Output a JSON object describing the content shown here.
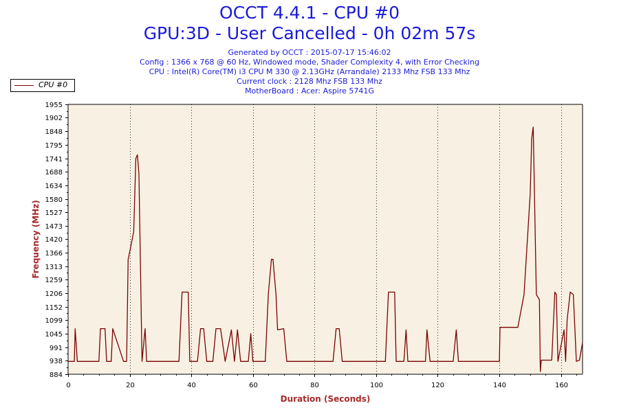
{
  "header": {
    "title_line1": "OCCT 4.4.1 - CPU #0",
    "title_line2": "GPU:3D - User Cancelled - 0h 02m 57s",
    "info_lines": [
      "Generated by OCCT : 2015-07-17 15:46:02",
      "Config : 1366 x 768 @ 60 Hz, Windowed mode, Shader Complexity 4, with Error Checking",
      "CPU : Intel(R) Core(TM) i3 CPU M 330 @ 2.13GHz (Arrandale) 2133 Mhz FSB 133 Mhz",
      "Current clock : 2128 Mhz FSB 133 Mhz",
      "MotherBoard : Acer: Aspire 5741G"
    ]
  },
  "legend": {
    "label": "CPU #0",
    "placement": "top-left"
  },
  "colors": {
    "line": "#7a0000",
    "plot_bg": "#f8f1e3",
    "axis_label": "#a52a2a",
    "title": "#1a1ad8"
  },
  "chart_data": {
    "type": "line",
    "xlabel": "Duration (Seconds)",
    "ylabel": "Frequency (MHz)",
    "xlim": [
      0,
      167
    ],
    "ylim": [
      884,
      1955
    ],
    "x_ticks": [
      0,
      20,
      40,
      60,
      80,
      100,
      120,
      140,
      160
    ],
    "y_ticks": [
      884,
      938,
      991,
      1045,
      1099,
      1152,
      1206,
      1259,
      1313,
      1366,
      1420,
      1473,
      1527,
      1580,
      1634,
      1688,
      1741,
      1795,
      1848,
      1902,
      1955
    ],
    "grid": {
      "x": true,
      "y": false
    },
    "series": [
      {
        "name": "CPU #0",
        "points": [
          [
            0,
            935
          ],
          [
            2,
            935
          ],
          [
            2.3,
            1065
          ],
          [
            3,
            935
          ],
          [
            10,
            935
          ],
          [
            10.5,
            1065
          ],
          [
            12,
            1065
          ],
          [
            12.5,
            935
          ],
          [
            14,
            935
          ],
          [
            14.5,
            1065
          ],
          [
            18,
            935
          ],
          [
            19,
            935
          ],
          [
            19.5,
            1340
          ],
          [
            20.5,
            1400
          ],
          [
            21.3,
            1450
          ],
          [
            22,
            1740
          ],
          [
            22.5,
            1755
          ],
          [
            23,
            1680
          ],
          [
            24,
            935
          ],
          [
            25,
            1065
          ],
          [
            25.5,
            935
          ],
          [
            36,
            935
          ],
          [
            37,
            1210
          ],
          [
            39,
            1210
          ],
          [
            39.5,
            935
          ],
          [
            42,
            935
          ],
          [
            43,
            1065
          ],
          [
            44,
            1065
          ],
          [
            45,
            935
          ],
          [
            47,
            935
          ],
          [
            48,
            1065
          ],
          [
            49.5,
            1065
          ],
          [
            51,
            935
          ],
          [
            53,
            1060
          ],
          [
            54,
            935
          ],
          [
            55,
            1060
          ],
          [
            56,
            935
          ],
          [
            58.5,
            935
          ],
          [
            59.3,
            1045
          ],
          [
            60,
            935
          ],
          [
            64,
            935
          ],
          [
            65,
            1200
          ],
          [
            66,
            1340
          ],
          [
            66.5,
            1340
          ],
          [
            67.5,
            1200
          ],
          [
            68,
            1060
          ],
          [
            70,
            1065
          ],
          [
            71,
            935
          ],
          [
            86,
            935
          ],
          [
            87,
            1065
          ],
          [
            88,
            1065
          ],
          [
            89,
            935
          ],
          [
            103,
            935
          ],
          [
            104,
            1210
          ],
          [
            106,
            1210
          ],
          [
            106.5,
            935
          ],
          [
            109,
            935
          ],
          [
            109.7,
            1060
          ],
          [
            110.3,
            935
          ],
          [
            116,
            935
          ],
          [
            116.5,
            1060
          ],
          [
            117.5,
            935
          ],
          [
            125,
            935
          ],
          [
            126,
            1060
          ],
          [
            126.7,
            935
          ],
          [
            140,
            935
          ],
          [
            140.2,
            1070
          ],
          [
            146,
            1070
          ],
          [
            148,
            1200
          ],
          [
            150,
            1600
          ],
          [
            150.5,
            1820
          ],
          [
            151,
            1865
          ],
          [
            152,
            1200
          ],
          [
            153,
            1180
          ],
          [
            153.3,
            895
          ],
          [
            153.6,
            940
          ],
          [
            157,
            940
          ],
          [
            158,
            1210
          ],
          [
            158.5,
            1200
          ],
          [
            159,
            935
          ],
          [
            161,
            1060
          ],
          [
            161.5,
            935
          ],
          [
            162,
            1100
          ],
          [
            163,
            1210
          ],
          [
            164,
            1200
          ],
          [
            165,
            935
          ],
          [
            166,
            940
          ],
          [
            167,
            1010
          ]
        ]
      }
    ]
  }
}
